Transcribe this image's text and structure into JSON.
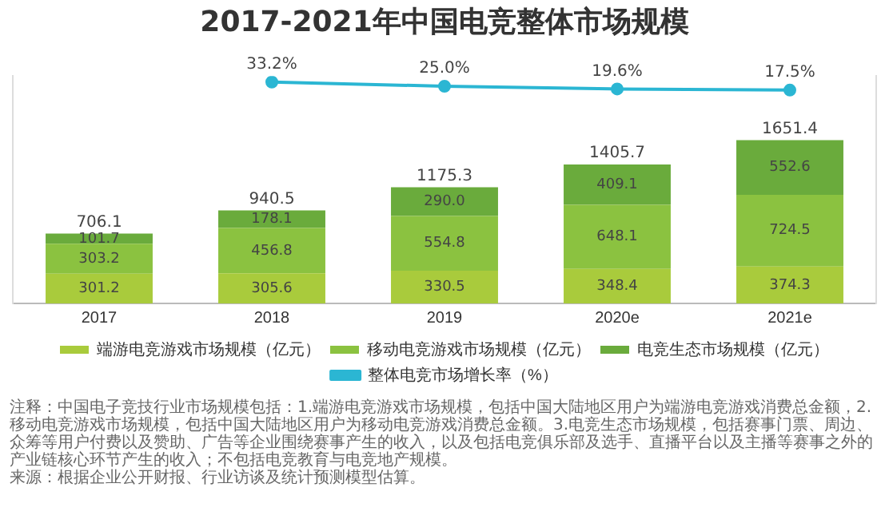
{
  "chart_data": {
    "type": "bar",
    "stacked": true,
    "title": "2017-2021年中国电竞整体市场规模",
    "categories": [
      "2017",
      "2018",
      "2019",
      "2020e",
      "2021e"
    ],
    "series": [
      {
        "name": "端游电竞游戏市场规模（亿元）",
        "color": "#a9cb3c",
        "values": [
          301.2,
          305.6,
          330.5,
          348.4,
          374.3
        ],
        "value_labels": [
          "301.2",
          "305.6",
          "330.5",
          "348.4",
          "374.3"
        ]
      },
      {
        "name": "移动电竞游戏市场规模（亿元）",
        "color": "#8bc240",
        "values": [
          303.2,
          456.8,
          554.8,
          648.1,
          724.5
        ],
        "value_labels": [
          "303.2",
          "456.8",
          "554.8",
          "648.1",
          "724.5"
        ]
      },
      {
        "name": "电竞生态市场规模（亿元）",
        "color": "#6aab3c",
        "values": [
          101.7,
          178.1,
          290.0,
          409.1,
          552.6
        ],
        "value_labels": [
          "101.7",
          "178.1",
          "290.0",
          "409.1",
          "552.6"
        ]
      },
      {
        "name": "整体电竞市场增长率（%）",
        "type": "line",
        "axis": "y2",
        "color": "#2bb6d3",
        "values": [
          null,
          33.2,
          25.0,
          19.6,
          17.5
        ],
        "value_labels": [
          null,
          "33.2%",
          "25.0%",
          "19.6%",
          "17.5%"
        ]
      }
    ],
    "totals": [
      "706.1",
      "940.5",
      "1175.3",
      "1405.7",
      "1651.4"
    ],
    "ylim": [
      0,
      2300
    ],
    "y2lim": [
      -400,
      45
    ],
    "tick_labels": "x",
    "grid": false,
    "legend": "bottom",
    "marker": "circle",
    "annotations": [
      "注释：中国电子竞技行业市场规模包括：1.端游电竞游戏市场规模，包括中国大陆地区用户为端游电竞游戏消费总金额，2.移动电竞游戏市场规模，包括中国大陆地区用户为移动电竞游戏消费总金额。3.电竞生态市场规模，包括赛事门票、周边、众筹等用户付费以及赞助、广告等企业围绕赛事产生的收入，以及包括电竞俱乐部及选手、直播平台以及主播等赛事之外的产业链核心环节产生的收入；不包括电竞教育与电竞地产规模。",
      "来源：根据企业公开财报、行业访谈及统计预测模型估算。"
    ]
  }
}
